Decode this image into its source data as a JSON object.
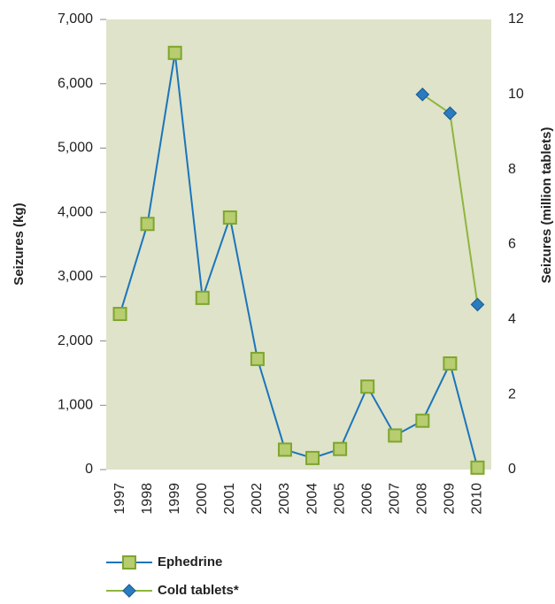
{
  "chart_data": {
    "type": "line",
    "categories": [
      "1997",
      "1998",
      "1999",
      "2000",
      "2001",
      "2002",
      "2003",
      "2004",
      "2005",
      "2006",
      "2007",
      "2008",
      "2009",
      "2010"
    ],
    "ylabel": "Seizures (kg)",
    "y2label": "Seizures (million tablets)",
    "ylim": [
      0,
      7000
    ],
    "yticks": [
      0,
      {
        "value": 1000,
        "label": "1,000"
      },
      {
        "value": 2000,
        "label": "2,000"
      },
      {
        "value": 3000,
        "label": "3,000"
      },
      {
        "value": 4000,
        "label": "4,000"
      },
      {
        "value": 5000,
        "label": "5,000"
      },
      {
        "value": 6000,
        "label": "6,000"
      },
      {
        "value": 7000,
        "label": "7,000"
      }
    ],
    "y2lim": [
      0,
      12
    ],
    "y2ticks": [
      0,
      2,
      4,
      6,
      8,
      10,
      12
    ],
    "legend": "bottom-left",
    "series": [
      {
        "name": "Ephedrine",
        "color": "#1b75bb",
        "marker": "square",
        "marker_color": "#b7cd70",
        "values": [
          2420,
          3820,
          6480,
          2670,
          3920,
          1720,
          310,
          180,
          320,
          1290,
          530,
          760,
          1650,
          30
        ]
      },
      {
        "name": "Cold tablets*",
        "color": "#8db63f",
        "marker": "diamond",
        "marker_color": "#2a7cc1",
        "axis": "y2",
        "values": [
          null,
          null,
          null,
          null,
          null,
          null,
          null,
          null,
          null,
          null,
          null,
          10.0,
          9.5,
          4.4
        ]
      }
    ]
  }
}
